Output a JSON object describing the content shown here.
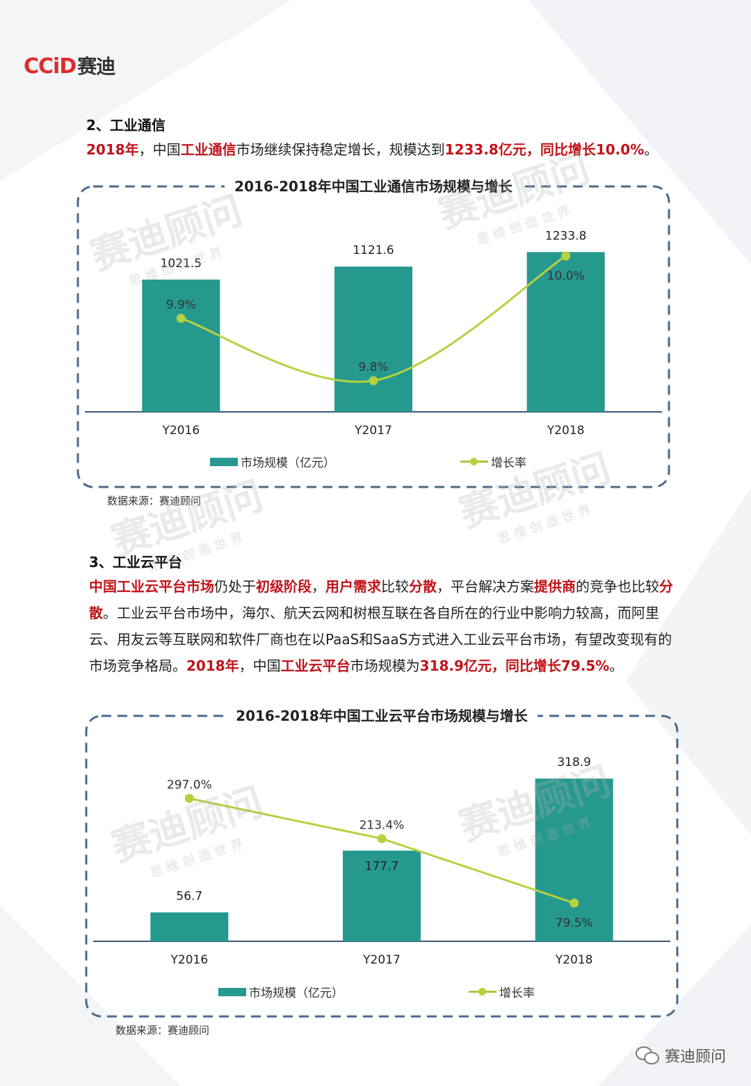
{
  "logo": {
    "latin": "CCiD",
    "cn": "赛迪"
  },
  "section2": {
    "title": "2、工业通信",
    "para": [
      {
        "t": "2018年",
        "hl": true
      },
      {
        "t": "，中国",
        "hl": false
      },
      {
        "t": "工业通信",
        "hl": true
      },
      {
        "t": "市场继续保持稳定增长，规模达到",
        "hl": false
      },
      {
        "t": "1233.8亿元，同比增长10.0%",
        "hl": true
      },
      {
        "t": "。",
        "hl": false
      }
    ]
  },
  "section3": {
    "title": "3、工业云平台",
    "para": [
      {
        "t": "中国工业云平台市场",
        "hl": true
      },
      {
        "t": "仍处于",
        "hl": false
      },
      {
        "t": "初级阶段",
        "hl": true
      },
      {
        "t": "，",
        "hl": false
      },
      {
        "t": "用户需求",
        "hl": true
      },
      {
        "t": "比较",
        "hl": false
      },
      {
        "t": "分散",
        "hl": true
      },
      {
        "t": "，平台解决方案",
        "hl": false
      },
      {
        "t": "提供商",
        "hl": true
      },
      {
        "t": "的竞争也比较",
        "hl": false
      },
      {
        "t": "分散",
        "hl": true
      },
      {
        "t": "。工业云平台市场中，海尔、航天云网和树根互联在各自所在的行业中影响力较高，而阿里云、用友云等互联网和软件厂商也在以PaaS和SaaS方式进入工业云平台市场，有望改变现有的市场竞争格局。",
        "hl": false
      },
      {
        "t": "2018年",
        "hl": true
      },
      {
        "t": "，中国",
        "hl": false
      },
      {
        "t": "工业云平台",
        "hl": true
      },
      {
        "t": "市场规模为",
        "hl": false
      },
      {
        "t": "318.9亿元，同比增长79.5%",
        "hl": true
      },
      {
        "t": "。",
        "hl": false
      }
    ]
  },
  "chart_data": [
    {
      "type": "bar",
      "title": "2016-2018年中国工业通信市场规模与增长",
      "categories": [
        "Y2016",
        "Y2017",
        "Y2018"
      ],
      "series": [
        {
          "name": "市场规模（亿元）",
          "type": "bar",
          "values": [
            1021.5,
            1121.6,
            1233.8
          ],
          "labels": [
            "1021.5",
            "1121.6",
            "1233.8"
          ],
          "color": "#26998f"
        },
        {
          "name": "增长率",
          "type": "line",
          "values": [
            9.9,
            9.8,
            10.0
          ],
          "labels": [
            "9.9%",
            "9.8%",
            "10.0%"
          ],
          "color": "#b6d13f"
        }
      ],
      "bar_ylim": [
        0,
        1300
      ],
      "line_ylim": [
        9.75,
        10.02
      ],
      "smooth": true,
      "source": "数据来源：赛迪顾问"
    },
    {
      "type": "bar",
      "title": "2016-2018年中国工业云平台市场规模与增长",
      "categories": [
        "Y2016",
        "Y2017",
        "Y2018"
      ],
      "series": [
        {
          "name": "市场规模（亿元）",
          "type": "bar",
          "values": [
            56.7,
            177.7,
            318.9
          ],
          "labels": [
            "56.7",
            "177.7",
            "318.9"
          ],
          "color": "#26998f"
        },
        {
          "name": "增长率",
          "type": "line",
          "values": [
            297.0,
            213.4,
            79.5
          ],
          "labels": [
            "297.0%",
            "213.4%",
            "79.5%"
          ],
          "color": "#b6d13f"
        }
      ],
      "bar_ylim": [
        0,
        330
      ],
      "line_ylim": [
        0,
        350
      ],
      "smooth": false,
      "source": "数据来源：赛迪顾问"
    }
  ],
  "watermark": {
    "main": "赛迪顾问",
    "sub": "思 维 创 造 世 界"
  },
  "footer": {
    "brand": "赛迪顾问"
  },
  "colors": {
    "accent": "#c0141b",
    "bar": "#26998f",
    "line": "#b6d13f",
    "frame": "#4a6a8a"
  }
}
